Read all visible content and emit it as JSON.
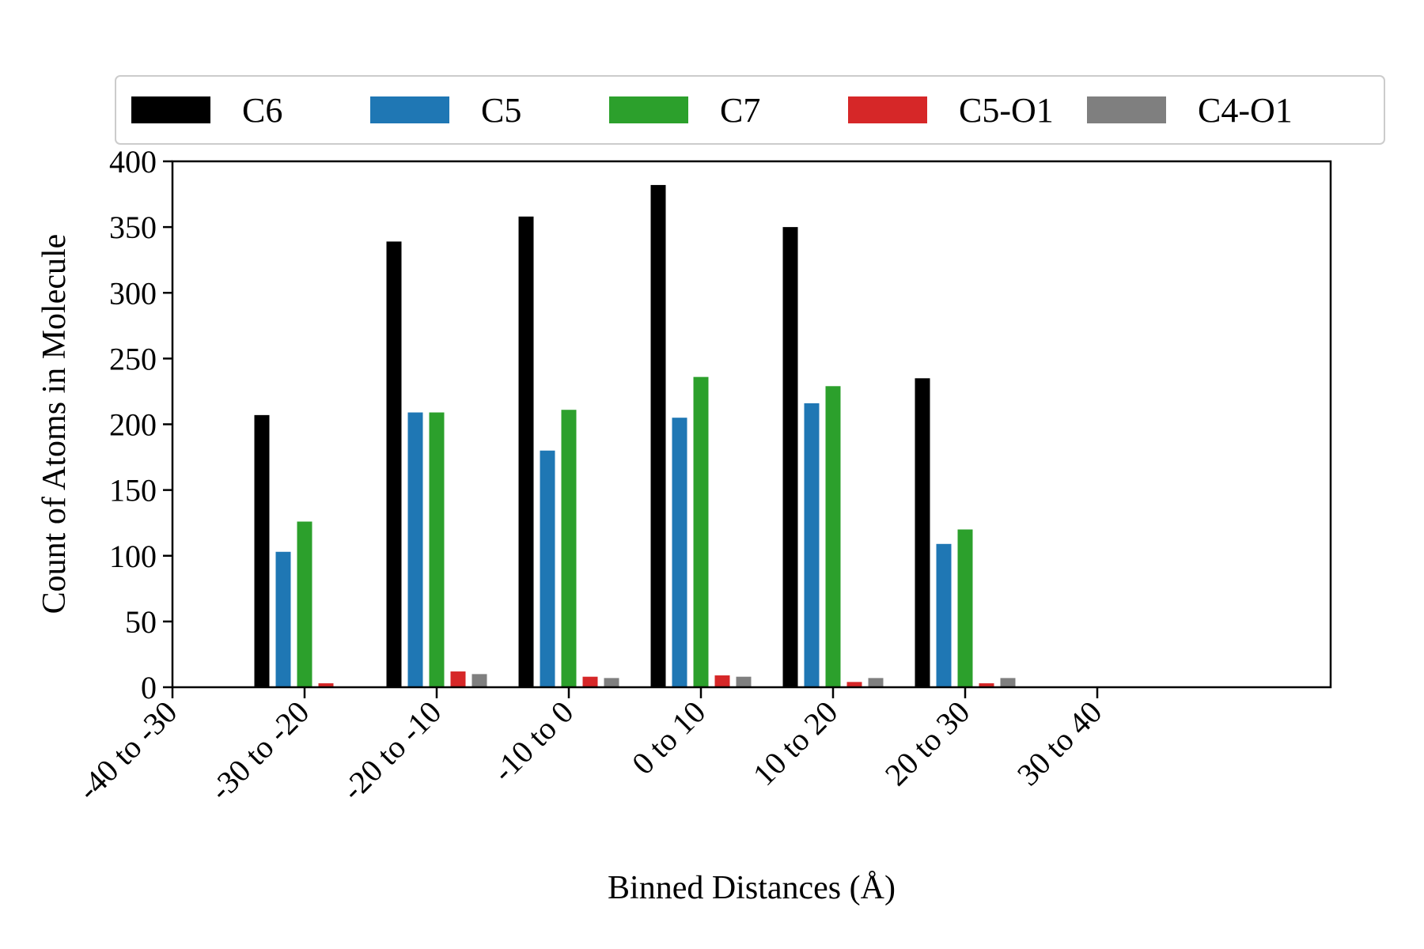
{
  "chart_data": {
    "type": "bar",
    "title": "",
    "xlabel": "Binned Distances (Å)",
    "ylabel": "Count of Atoms in Molecule",
    "categories": [
      "-40 to -30",
      "-30 to -20",
      "-20 to -10",
      "-10 to 0",
      "0 to 10",
      "10 to 20",
      "20 to 30",
      "30 to 40"
    ],
    "ylim": [
      0,
      400
    ],
    "yticks": [
      "0",
      "50",
      "100",
      "150",
      "200",
      "250",
      "300",
      "350",
      "400"
    ],
    "grid": false,
    "legend_position": "top",
    "series": [
      {
        "name": "C6",
        "color": "#000000",
        "values": [
          0,
          207,
          339,
          358,
          382,
          350,
          235,
          0
        ]
      },
      {
        "name": "C5",
        "color": "#1f77b4",
        "values": [
          0,
          103,
          209,
          180,
          205,
          216,
          109,
          0
        ]
      },
      {
        "name": "C7",
        "color": "#2ca02c",
        "values": [
          0,
          126,
          209,
          211,
          236,
          229,
          120,
          0
        ]
      },
      {
        "name": "C5-O1",
        "color": "#d62728",
        "values": [
          0,
          3,
          12,
          8,
          9,
          4,
          3,
          0
        ]
      },
      {
        "name": "C4-O1",
        "color": "#7f7f7f",
        "values": [
          0,
          0,
          10,
          7,
          8,
          7,
          7,
          0
        ]
      }
    ]
  }
}
